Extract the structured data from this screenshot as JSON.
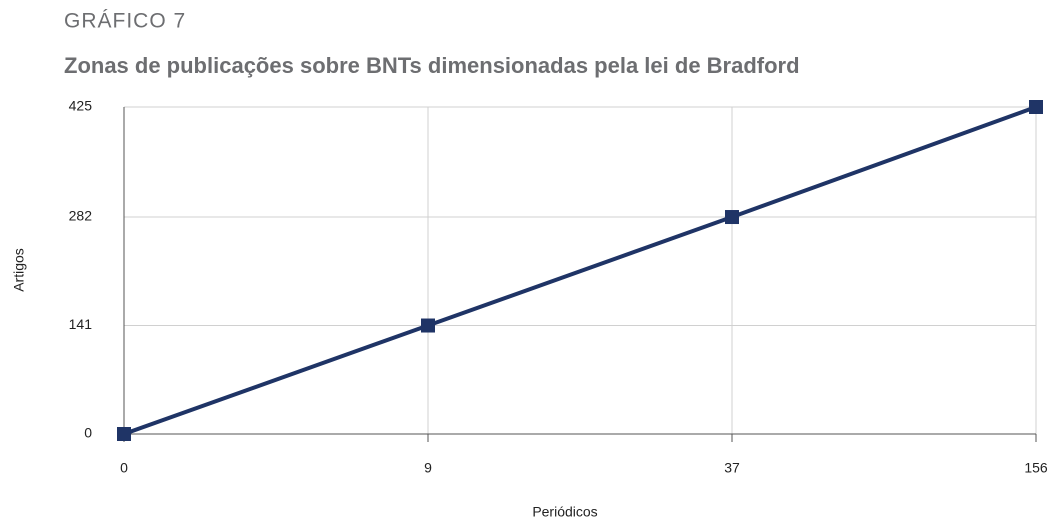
{
  "chart_data": {
    "type": "line",
    "subtitle": "GRÁFICO 7",
    "title": "Zonas de publicações sobre BNTs dimensionadas pela lei de Bradford",
    "x_label": "Periódicos",
    "y_label": "Artigos",
    "categories": [
      "0",
      "9",
      "37",
      "156"
    ],
    "series": [
      {
        "name": "Artigos",
        "color": "#1f3466",
        "values": [
          0,
          141,
          282,
          425
        ]
      }
    ],
    "ylim": [
      0,
      425
    ],
    "yticks": [
      0,
      141,
      282,
      425
    ],
    "grid": true
  }
}
